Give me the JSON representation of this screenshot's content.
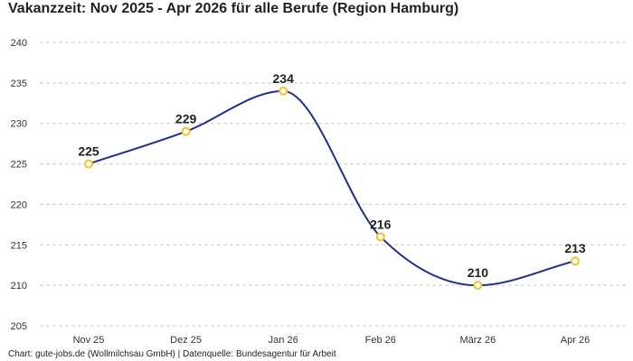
{
  "chart_data": {
    "type": "line",
    "title": "Vakanzzeit: Nov 2025 - Apr 2026 für alle Berufe (Region Hamburg)",
    "categories": [
      "Nov 25",
      "Dez 25",
      "Jan 26",
      "Feb 26",
      "März 26",
      "Apr 26"
    ],
    "series": [
      {
        "values": [
          225,
          229,
          234,
          216,
          210,
          213
        ]
      }
    ],
    "ylim": [
      205,
      240
    ],
    "yticks": [
      205,
      210,
      215,
      220,
      225,
      230,
      235,
      240
    ],
    "grid": true,
    "source": "Chart: gute-jobs.de (Wollmilchsau GmbH) | Datenquelle: Bundesagentur für Arbeit"
  },
  "colors": {
    "line": "#1f2f8a",
    "marker_stroke": "#f2c429",
    "marker_fill": "#ffffff",
    "grid": "#cccccc"
  }
}
